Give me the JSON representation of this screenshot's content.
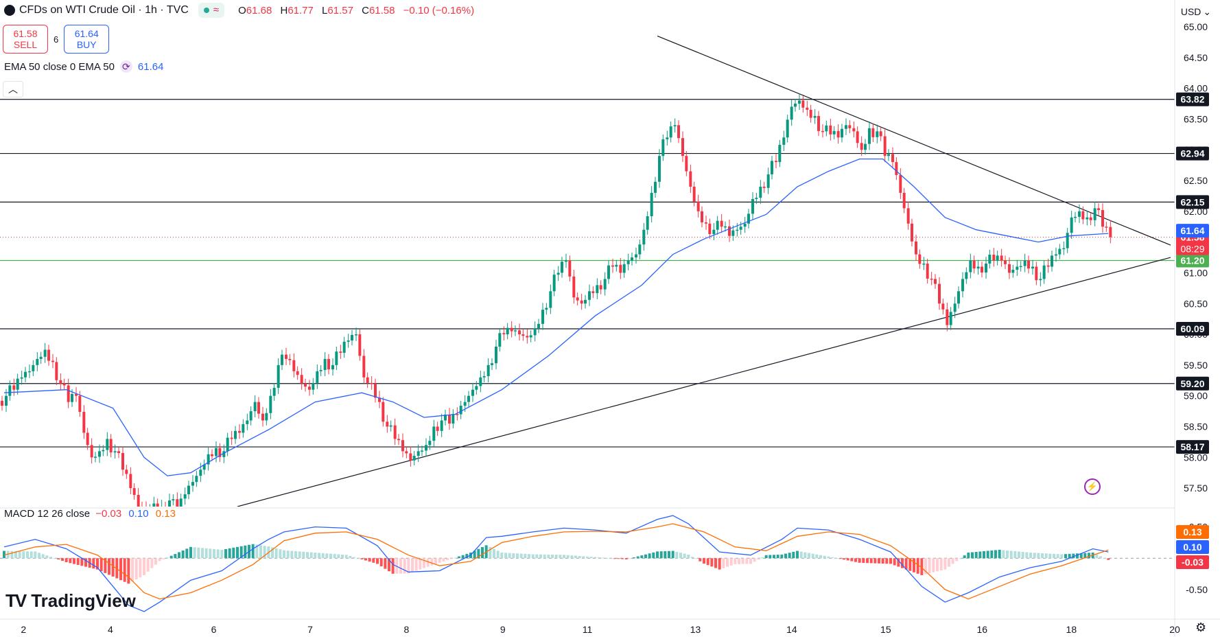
{
  "header": {
    "symbol_title": "CFDs on WTI Crude Oil · 1h · TVC",
    "ohlc": [
      {
        "label": "O",
        "value": "61.68"
      },
      {
        "label": "H",
        "value": "61.77"
      },
      {
        "label": "L",
        "value": "61.57"
      },
      {
        "label": "C",
        "value": "61.58"
      }
    ],
    "change": "−0.10 (−0.16%)",
    "status_icon": "market-open-dot",
    "wave_icon": "approx-icon"
  },
  "trade": {
    "sell_price": "61.58",
    "sell_label": "SELL",
    "spread": "6",
    "buy_price": "61.64",
    "buy_label": "BUY"
  },
  "ema_legend": {
    "label": "EMA 50 close 0 EMA 50",
    "value": "61.64",
    "icon": "refresh-icon"
  },
  "collapse_icon": "chevron-up-icon",
  "macd_legend": {
    "label": "MACD 12 26 close",
    "histogram": "−0.03",
    "macd": "0.10",
    "signal": "0.13"
  },
  "brand": {
    "name": "TradingView",
    "mark": "TV"
  },
  "currency": "USD",
  "chart_data": [
    {
      "type": "candlestick",
      "title": "CFDs on WTI Crude Oil",
      "interval": "1h",
      "ylim": [
        57.2,
        65.1
      ],
      "y_ticks": [
        "65.00",
        "64.50",
        "64.00",
        "63.50",
        "63.00",
        "62.50",
        "62.00",
        "61.50",
        "61.00",
        "60.50",
        "60.00",
        "59.50",
        "59.00",
        "58.50",
        "58.00",
        "57.50"
      ],
      "x_ticks": [
        {
          "label": "2",
          "pos": 0.02
        },
        {
          "label": "4",
          "pos": 0.094
        },
        {
          "label": "6",
          "pos": 0.182
        },
        {
          "label": "7",
          "pos": 0.264
        },
        {
          "label": "8",
          "pos": 0.346
        },
        {
          "label": "9",
          "pos": 0.428
        },
        {
          "label": "11",
          "pos": 0.5
        },
        {
          "label": "13",
          "pos": 0.592
        },
        {
          "label": "14",
          "pos": 0.674
        },
        {
          "label": "15",
          "pos": 0.754
        },
        {
          "label": "16",
          "pos": 0.836
        },
        {
          "label": "18",
          "pos": 0.912
        },
        {
          "label": "20",
          "pos": 1.0
        }
      ],
      "close_path": [
        [
          0,
          59.0
        ],
        [
          1,
          59.1
        ],
        [
          2,
          59.3
        ],
        [
          3,
          59.4
        ],
        [
          4,
          59.6
        ],
        [
          5,
          59.75
        ],
        [
          6,
          59.55
        ],
        [
          7,
          59.2
        ],
        [
          8,
          58.9
        ],
        [
          9,
          59.0
        ],
        [
          10,
          58.4
        ],
        [
          11,
          58.0
        ],
        [
          12,
          58.1
        ],
        [
          13,
          58.3
        ],
        [
          14,
          58.1
        ],
        [
          15,
          57.8
        ],
        [
          16,
          57.5
        ],
        [
          17,
          57.2
        ],
        [
          18,
          57.15
        ],
        [
          19,
          57.25
        ],
        [
          20,
          57.2
        ],
        [
          21,
          57.3
        ],
        [
          22,
          57.1
        ],
        [
          23,
          57.4
        ],
        [
          24,
          57.6
        ],
        [
          25,
          57.8
        ],
        [
          26,
          58.05
        ],
        [
          27,
          58.15
        ],
        [
          28,
          58.1
        ],
        [
          29,
          58.3
        ],
        [
          30,
          58.4
        ],
        [
          31,
          58.6
        ],
        [
          32,
          58.9
        ],
        [
          33,
          58.6
        ],
        [
          34,
          59.0
        ],
        [
          35,
          59.5
        ],
        [
          36,
          59.6
        ],
        [
          37,
          59.4
        ],
        [
          38,
          59.2
        ],
        [
          39,
          59.1
        ],
        [
          40,
          59.4
        ],
        [
          41,
          59.6
        ],
        [
          42,
          59.5
        ],
        [
          43,
          59.7
        ],
        [
          44,
          59.9
        ],
        [
          45,
          60.0
        ],
        [
          46,
          59.3
        ],
        [
          47,
          59.2
        ],
        [
          48,
          58.9
        ],
        [
          49,
          58.5
        ],
        [
          50,
          58.3
        ],
        [
          51,
          58.1
        ],
        [
          52,
          57.95
        ],
        [
          53,
          58.1
        ],
        [
          54,
          58.2
        ],
        [
          55,
          58.5
        ],
        [
          56,
          58.6
        ],
        [
          57,
          58.55
        ],
        [
          58,
          58.7
        ],
        [
          59,
          58.9
        ],
        [
          60,
          59.1
        ],
        [
          61,
          59.3
        ],
        [
          62,
          59.5
        ],
        [
          63,
          59.8
        ],
        [
          64,
          60.0
        ],
        [
          65,
          60.05
        ],
        [
          66,
          60.0
        ],
        [
          67,
          59.95
        ],
        [
          68,
          60.1
        ],
        [
          69,
          60.4
        ],
        [
          70,
          60.7
        ],
        [
          71,
          61.0
        ],
        [
          72,
          61.2
        ],
        [
          73,
          60.6
        ],
        [
          74,
          60.5
        ],
        [
          75,
          60.7
        ],
        [
          76,
          60.8
        ],
        [
          77,
          60.9
        ],
        [
          78,
          61.1
        ],
        [
          79,
          61.0
        ],
        [
          80,
          61.2
        ],
        [
          81,
          61.3
        ],
        [
          82,
          61.7
        ],
        [
          83,
          62.3
        ],
        [
          84,
          62.9
        ],
        [
          85,
          63.2
        ],
        [
          86,
          63.4
        ],
        [
          87,
          62.9
        ],
        [
          88,
          62.4
        ],
        [
          89,
          62.0
        ],
        [
          90,
          61.8
        ],
        [
          91,
          61.7
        ],
        [
          92,
          61.75
        ],
        [
          93,
          61.6
        ],
        [
          94,
          61.7
        ],
        [
          95,
          61.8
        ],
        [
          96,
          62.2
        ],
        [
          97,
          62.4
        ],
        [
          98,
          62.6
        ],
        [
          99,
          62.8
        ],
        [
          100,
          63.2
        ],
        [
          101,
          63.7
        ],
        [
          102,
          63.8
        ],
        [
          103,
          63.65
        ],
        [
          104,
          63.55
        ],
        [
          105,
          63.3
        ],
        [
          106,
          63.25
        ],
        [
          107,
          63.2
        ],
        [
          108,
          63.4
        ],
        [
          109,
          63.3
        ],
        [
          110,
          63.0
        ],
        [
          111,
          63.35
        ],
        [
          112,
          63.3
        ],
        [
          113,
          62.9
        ],
        [
          114,
          62.8
        ],
        [
          115,
          62.3
        ],
        [
          116,
          61.8
        ],
        [
          117,
          61.3
        ],
        [
          118,
          61.15
        ],
        [
          119,
          60.9
        ],
        [
          120,
          60.5
        ],
        [
          121,
          60.15
        ],
        [
          122,
          60.5
        ],
        [
          123,
          60.9
        ],
        [
          124,
          61.2
        ],
        [
          125,
          61.1
        ],
        [
          126,
          61.15
        ],
        [
          127,
          61.2
        ],
        [
          128,
          61.2
        ],
        [
          129,
          61.0
        ],
        [
          130,
          61.1
        ],
        [
          131,
          61.2
        ],
        [
          132,
          61.1
        ],
        [
          133,
          60.9
        ],
        [
          134,
          61.1
        ],
        [
          135,
          61.3
        ],
        [
          136,
          61.4
        ],
        [
          137,
          61.9
        ],
        [
          138,
          62.0
        ],
        [
          139,
          61.9
        ],
        [
          140,
          62.05
        ],
        [
          141,
          61.75
        ],
        [
          142,
          61.58
        ]
      ],
      "ema50_path": [
        [
          0,
          59.05
        ],
        [
          8,
          59.1
        ],
        [
          14,
          58.8
        ],
        [
          18,
          58.0
        ],
        [
          21,
          57.7
        ],
        [
          24,
          57.75
        ],
        [
          28,
          58.05
        ],
        [
          34,
          58.45
        ],
        [
          40,
          58.9
        ],
        [
          46,
          59.05
        ],
        [
          50,
          58.9
        ],
        [
          54,
          58.65
        ],
        [
          58,
          58.7
        ],
        [
          64,
          59.1
        ],
        [
          70,
          59.65
        ],
        [
          76,
          60.3
        ],
        [
          82,
          60.8
        ],
        [
          86,
          61.3
        ],
        [
          90,
          61.55
        ],
        [
          94,
          61.75
        ],
        [
          98,
          61.95
        ],
        [
          102,
          62.4
        ],
        [
          106,
          62.65
        ],
        [
          110,
          62.85
        ],
        [
          113,
          62.85
        ],
        [
          117,
          62.4
        ],
        [
          121,
          61.9
        ],
        [
          125,
          61.7
        ],
        [
          129,
          61.6
        ],
        [
          133,
          61.5
        ],
        [
          137,
          61.6
        ],
        [
          142,
          61.64
        ]
      ],
      "horizontal_levels": [
        {
          "price": 63.82,
          "label": "63.82"
        },
        {
          "price": 62.94,
          "label": "62.94"
        },
        {
          "price": 62.15,
          "label": "62.15"
        },
        {
          "price": 60.09,
          "label": "60.09"
        },
        {
          "price": 59.2,
          "label": "59.20"
        },
        {
          "price": 58.17,
          "label": "58.17"
        }
      ],
      "highlight_line": {
        "price": 61.2,
        "label": "61.20",
        "color": "#4caf50"
      },
      "last_price": {
        "price": 61.58,
        "label": "61.58",
        "countdown": "08:29",
        "color": "#f23645"
      },
      "ema_price_tag": {
        "price": 61.64,
        "label": "61.64",
        "color": "#2962ff"
      },
      "trendlines": [
        {
          "from": [
            84,
            64.85
          ],
          "to": [
            150,
            61.45
          ]
        },
        {
          "from": [
            30,
            57.2
          ],
          "to": [
            150,
            61.25
          ]
        }
      ],
      "colors": {
        "up": "#089981",
        "down": "#f23645",
        "ema": "#2962ff"
      }
    },
    {
      "type": "macd",
      "ylim": [
        -0.95,
        0.78
      ],
      "y_ticks": [
        "0.50",
        "-0.50"
      ],
      "macd_path": [
        [
          0,
          0.18
        ],
        [
          4,
          0.3
        ],
        [
          8,
          0.15
        ],
        [
          12,
          -0.15
        ],
        [
          16,
          -0.75
        ],
        [
          18,
          -0.85
        ],
        [
          20,
          -0.7
        ],
        [
          24,
          -0.35
        ],
        [
          28,
          -0.2
        ],
        [
          32,
          0.15
        ],
        [
          34,
          0.3
        ],
        [
          36,
          0.42
        ],
        [
          40,
          0.5
        ],
        [
          44,
          0.48
        ],
        [
          48,
          0.2
        ],
        [
          50,
          -0.1
        ],
        [
          52,
          -0.22
        ],
        [
          56,
          -0.2
        ],
        [
          60,
          0.05
        ],
        [
          62,
          0.33
        ],
        [
          64,
          0.35
        ],
        [
          68,
          0.42
        ],
        [
          72,
          0.48
        ],
        [
          76,
          0.45
        ],
        [
          80,
          0.4
        ],
        [
          84,
          0.62
        ],
        [
          86,
          0.68
        ],
        [
          88,
          0.55
        ],
        [
          92,
          0.1
        ],
        [
          96,
          0.05
        ],
        [
          100,
          0.3
        ],
        [
          102,
          0.48
        ],
        [
          106,
          0.45
        ],
        [
          110,
          0.3
        ],
        [
          114,
          0.1
        ],
        [
          118,
          -0.45
        ],
        [
          121,
          -0.7
        ],
        [
          124,
          -0.55
        ],
        [
          128,
          -0.3
        ],
        [
          132,
          -0.15
        ],
        [
          136,
          -0.05
        ],
        [
          140,
          0.15
        ],
        [
          142,
          0.1
        ]
      ],
      "signal_path": [
        [
          0,
          0.05
        ],
        [
          4,
          0.18
        ],
        [
          8,
          0.22
        ],
        [
          12,
          0.05
        ],
        [
          16,
          -0.3
        ],
        [
          18,
          -0.55
        ],
        [
          20,
          -0.65
        ],
        [
          24,
          -0.55
        ],
        [
          28,
          -0.35
        ],
        [
          32,
          -0.1
        ],
        [
          36,
          0.28
        ],
        [
          40,
          0.4
        ],
        [
          44,
          0.42
        ],
        [
          48,
          0.3
        ],
        [
          52,
          0.05
        ],
        [
          56,
          -0.12
        ],
        [
          60,
          -0.05
        ],
        [
          64,
          0.25
        ],
        [
          68,
          0.35
        ],
        [
          72,
          0.42
        ],
        [
          76,
          0.43
        ],
        [
          80,
          0.42
        ],
        [
          84,
          0.5
        ],
        [
          86,
          0.55
        ],
        [
          90,
          0.42
        ],
        [
          94,
          0.18
        ],
        [
          98,
          0.12
        ],
        [
          102,
          0.35
        ],
        [
          106,
          0.42
        ],
        [
          110,
          0.38
        ],
        [
          114,
          0.2
        ],
        [
          118,
          -0.15
        ],
        [
          121,
          -0.5
        ],
        [
          124,
          -0.65
        ],
        [
          128,
          -0.45
        ],
        [
          132,
          -0.25
        ],
        [
          136,
          -0.12
        ],
        [
          140,
          0.05
        ],
        [
          142,
          0.13
        ]
      ],
      "tags": [
        {
          "value": 0.13,
          "label": "0.13",
          "color": "#ff6d00"
        },
        {
          "value": 0.1,
          "label": "0.10",
          "color": "#2962ff"
        },
        {
          "value": -0.03,
          "label": "-0.03",
          "color": "#f23645"
        }
      ]
    }
  ]
}
